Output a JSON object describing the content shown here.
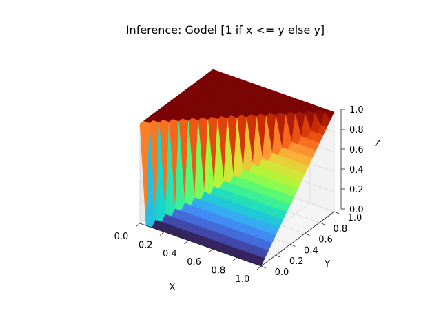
{
  "chart_data": {
    "type": "surface3d",
    "title": "Inference: Godel [1 if x <= y else y]",
    "xlabel": "X",
    "ylabel": "Y",
    "zlabel": "Z",
    "xlim": [
      0,
      1
    ],
    "ylim": [
      0,
      1
    ],
    "zlim": [
      0,
      1
    ],
    "x_ticks": [
      "0.0",
      "0.2",
      "0.4",
      "0.6",
      "0.8",
      "1.0"
    ],
    "y_ticks": [
      "0.0",
      "0.2",
      "0.4",
      "0.6",
      "0.8",
      "1.0"
    ],
    "z_ticks": [
      "0.0",
      "0.2",
      "0.4",
      "0.6",
      "0.8",
      "1.0"
    ],
    "grid": true,
    "colormap": "turbo",
    "grid_points": 21,
    "function": "z = 1 if x <= y else y"
  }
}
